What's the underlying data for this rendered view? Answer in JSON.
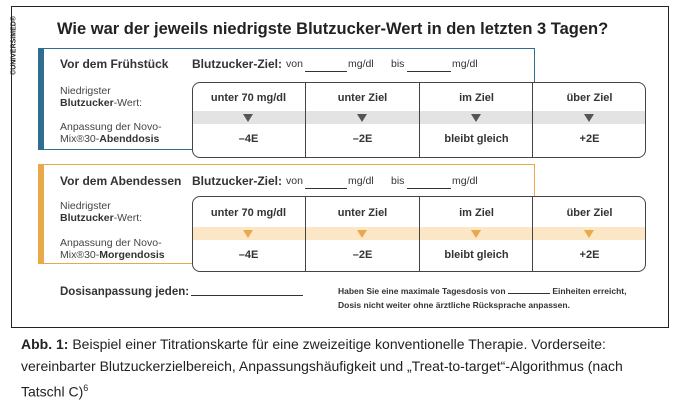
{
  "logo": "©UNIVERSIMED®",
  "heading": "Wie war der jeweils niedrigste Blutzucker-Wert in den letzten 3 Tagen?",
  "sections": [
    {
      "title": "Vor dem Frühstück",
      "target_label": "Blutzucker-Ziel:",
      "from_label": "von",
      "unit1": "mg/dl",
      "to_label": "bis",
      "unit2": "mg/dl",
      "row1_label_line1": "Niedrigster",
      "row1_label_bold": "Blutzucker",
      "row1_label_rest": "-Wert:",
      "row2_label_line1": "Anpassung der Novo-",
      "row2_label_plain": "Mix®30-",
      "row2_label_bold": "Abenddosis",
      "ranges": [
        "unter 70 mg/dl",
        "unter Ziel",
        "im Ziel",
        "über Ziel"
      ],
      "doses": [
        "–4E",
        "–2E",
        "bleibt gleich",
        "+2E"
      ],
      "accent_color": "#2f6e8e",
      "band_color": "#e3e3e3",
      "arrow_color": "#555555"
    },
    {
      "title": "Vor dem Abendessen",
      "target_label": "Blutzucker-Ziel:",
      "from_label": "von",
      "unit1": "mg/dl",
      "to_label": "bis",
      "unit2": "mg/dl",
      "row1_label_line1": "Niedrigster",
      "row1_label_bold": "Blutzucker",
      "row1_label_rest": "-Wert:",
      "row2_label_line1": "Anpassung der Novo-",
      "row2_label_plain": "Mix®30-",
      "row2_label_bold": "Morgendosis",
      "ranges": [
        "unter 70 mg/dl",
        "unter Ziel",
        "im Ziel",
        "über Ziel"
      ],
      "doses": [
        "–4E",
        "–2E",
        "bleibt gleich",
        "+2E"
      ],
      "accent_color": "#e8a94a",
      "band_color": "#fbe6c6",
      "arrow_color": "#e8a94a"
    }
  ],
  "footer": {
    "dose_label": "Dosisanpassung jeden:",
    "note_a": "Haben Sie eine maximale Tagesdosis von",
    "note_b": "Einheiten erreicht,",
    "note_line2": "Dosis nicht weiter ohne ärztliche Rücksprache anpassen."
  },
  "caption": {
    "bold": "Abb. 1:",
    "text": " Beispiel einer Titrationskarte für eine zweizeitige konventionelle Therapie. Vorderseite: vereinbarter Blutzuckerzielbereich, Anpassungshäufigkeit und „Treat-to-target“-Algorithmus (nach Tatschl C)",
    "sup": "6"
  }
}
